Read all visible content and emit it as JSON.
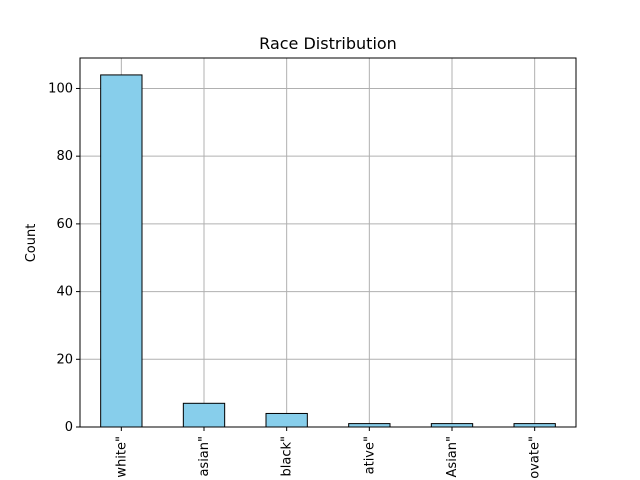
{
  "chart_data": {
    "type": "bar",
    "title": "Race Distribution",
    "xlabel": "",
    "ylabel": "Count",
    "categories": [
      "white\"",
      "asian\"",
      "black\"",
      "ative\"",
      "Asian\"",
      "ovate\""
    ],
    "values": [
      104,
      7,
      4,
      1,
      1,
      1
    ],
    "ylim": [
      0,
      109
    ],
    "yticks": [
      0,
      20,
      40,
      60,
      80,
      100
    ],
    "grid": true,
    "colors": {
      "bar": "#87CEEB",
      "edge": "#000000",
      "grid": "#b0b0b0"
    }
  }
}
